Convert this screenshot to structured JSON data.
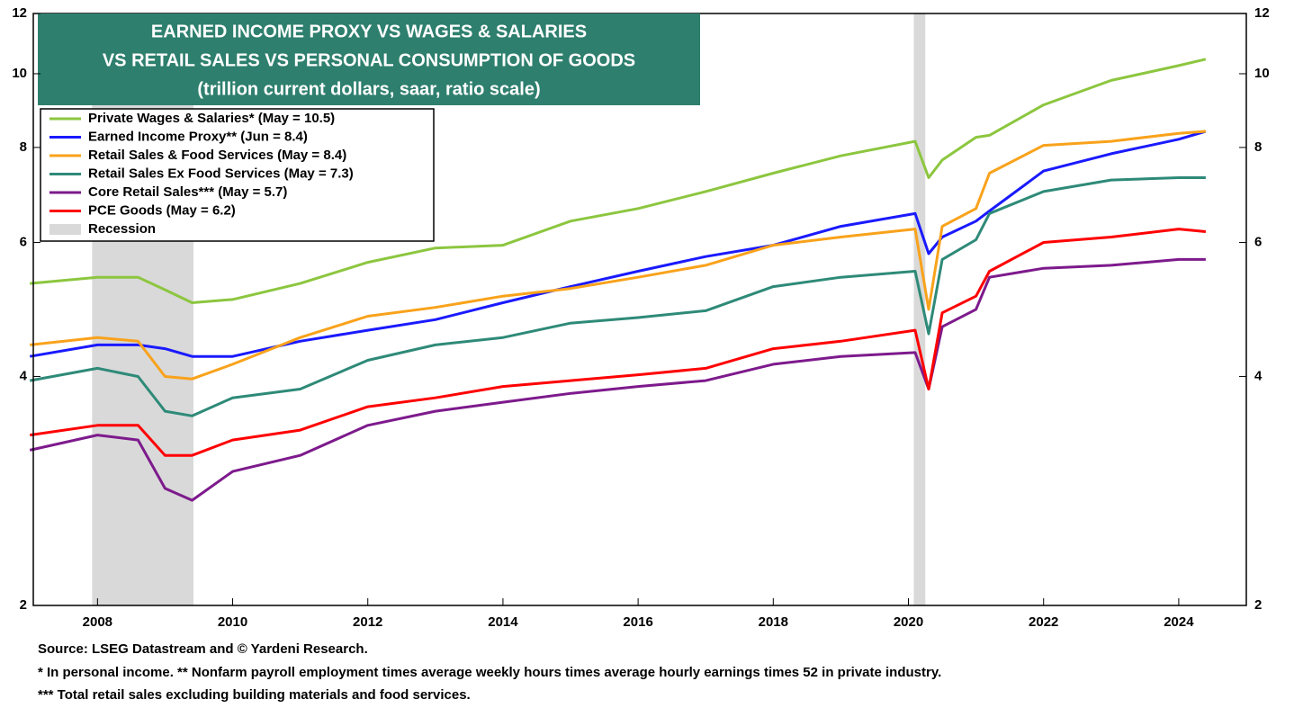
{
  "chart_data": {
    "type": "line",
    "title": [
      "EARNED INCOME PROXY VS WAGES & SALARIES",
      "VS RETAIL SALES VS PERSONAL CONSUMPTION OF GOODS"
    ],
    "subtitle": "(trillion current dollars, saar, ratio scale)",
    "log_scale": true,
    "xlim": [
      2007.05,
      2025.0
    ],
    "xticks": [
      2008,
      2010,
      2012,
      2014,
      2016,
      2018,
      2020,
      2022,
      2024
    ],
    "ylim": [
      2,
      12
    ],
    "yticks": [
      2,
      4,
      6,
      8,
      10,
      12
    ],
    "legend": "upper left",
    "x": [
      2007.0,
      2008.0,
      2008.6,
      2009.0,
      2009.4,
      2010,
      2011,
      2012,
      2013,
      2014,
      2015,
      2016,
      2017,
      2018,
      2019,
      2020.1,
      2020.3,
      2020.5,
      2021,
      2021.2,
      2022,
      2023,
      2024,
      2024.4
    ],
    "series": [
      {
        "name": "Private Wages & Salaries* (May = 10.5)",
        "color": "#8cc63f",
        "values": [
          5.3,
          5.4,
          5.4,
          5.2,
          5.0,
          5.05,
          5.3,
          5.65,
          5.9,
          5.95,
          6.4,
          6.65,
          7.0,
          7.4,
          7.8,
          8.15,
          7.3,
          7.7,
          8.25,
          8.3,
          9.1,
          9.8,
          10.25,
          10.45
        ]
      },
      {
        "name": "Earned Income Proxy** (Jun = 8.4)",
        "color": "#1a1aff",
        "values": [
          4.25,
          4.4,
          4.4,
          4.35,
          4.25,
          4.25,
          4.45,
          4.6,
          4.75,
          5.0,
          5.25,
          5.5,
          5.75,
          5.95,
          6.3,
          6.55,
          5.8,
          6.1,
          6.4,
          6.6,
          7.45,
          7.85,
          8.2,
          8.4
        ]
      },
      {
        "name": "Retail Sales & Food Services (May = 8.4)",
        "color": "#f9a21b",
        "values": [
          4.4,
          4.5,
          4.45,
          4.0,
          3.97,
          4.15,
          4.5,
          4.8,
          4.93,
          5.1,
          5.22,
          5.4,
          5.6,
          5.95,
          6.1,
          6.25,
          4.9,
          6.3,
          6.65,
          7.4,
          8.05,
          8.15,
          8.35,
          8.4
        ]
      },
      {
        "name": "Retail Sales Ex Food Services (May = 7.3)",
        "color": "#2e8a78",
        "values": [
          3.95,
          4.1,
          4.0,
          3.6,
          3.55,
          3.75,
          3.85,
          4.2,
          4.4,
          4.5,
          4.7,
          4.78,
          4.88,
          5.25,
          5.4,
          5.5,
          4.55,
          5.7,
          6.05,
          6.55,
          7.0,
          7.25,
          7.3,
          7.3
        ]
      },
      {
        "name": "Core Retail  Sales*** (May = 5.7)",
        "color": "#7d1a8c",
        "values": [
          3.2,
          3.35,
          3.3,
          2.85,
          2.75,
          3.0,
          3.15,
          3.45,
          3.6,
          3.7,
          3.8,
          3.88,
          3.95,
          4.15,
          4.25,
          4.3,
          3.85,
          4.65,
          4.9,
          5.4,
          5.55,
          5.6,
          5.7,
          5.7
        ]
      },
      {
        "name": "PCE Goods (May = 6.2)",
        "color": "#ff0000",
        "values": [
          3.35,
          3.45,
          3.45,
          3.15,
          3.15,
          3.3,
          3.4,
          3.65,
          3.75,
          3.88,
          3.95,
          4.02,
          4.1,
          4.35,
          4.45,
          4.6,
          3.85,
          4.85,
          5.1,
          5.5,
          6.0,
          6.1,
          6.25,
          6.2
        ]
      }
    ],
    "recession_label": "Recession",
    "recession_color": "#d9d9d9",
    "recessions": [
      {
        "start": 2007.92,
        "end": 2009.42
      },
      {
        "start": 2020.08,
        "end": 2020.25
      }
    ],
    "notes": [
      "Source: LSEG Datastream and © Yardeni Research.",
      "* In personal income. ** Nonfarm payroll employment times average weekly hours times average hourly earnings times 52 in private industry.",
      "*** Total retail sales excluding building materials and food services."
    ]
  }
}
